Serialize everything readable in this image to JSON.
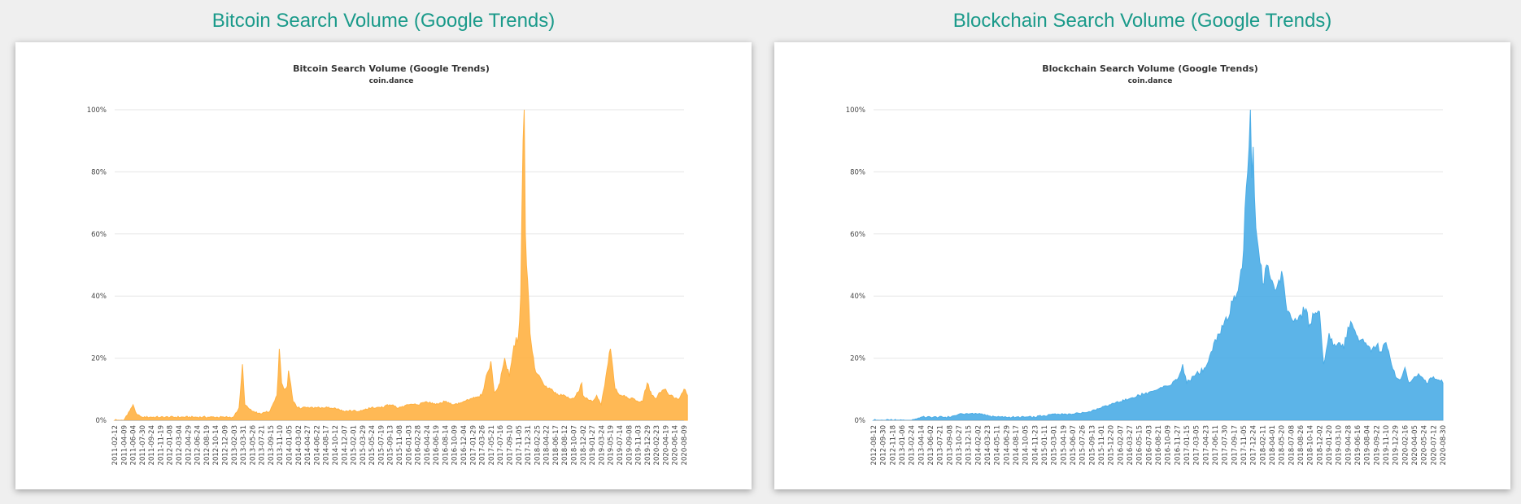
{
  "page": {
    "left_heading": "Bitcoin Search Volume (Google Trends)",
    "right_heading": "Blockchain Search Volume (Google Trends)"
  },
  "chart_data": [
    {
      "type": "area",
      "title": "Bitcoin Search Volume (Google Trends)",
      "subtitle": "coin.dance",
      "color": "#ffb142",
      "yticks": [
        "0%",
        "20%",
        "40%",
        "60%",
        "80%",
        "100%"
      ],
      "ylim": [
        0,
        100
      ],
      "grid": true,
      "x_labels": [
        "2011-02-12",
        "2011-04-09",
        "2011-06-04",
        "2011-07-30",
        "2011-09-24",
        "2011-11-19",
        "2012-01-08",
        "2012-03-04",
        "2012-04-29",
        "2012-06-24",
        "2012-08-19",
        "2012-10-14",
        "2012-12-09",
        "2013-02-03",
        "2013-03-31",
        "2013-05-26",
        "2013-07-21",
        "2013-09-15",
        "2013-11-10",
        "2014-01-05",
        "2014-03-02",
        "2014-04-27",
        "2014-06-22",
        "2014-08-17",
        "2014-10-12",
        "2014-12-07",
        "2015-02-01",
        "2015-03-29",
        "2015-05-24",
        "2015-07-19",
        "2015-09-13",
        "2015-11-08",
        "2016-01-03",
        "2016-02-28",
        "2016-04-24",
        "2016-06-19",
        "2016-08-14",
        "2016-10-09",
        "2016-12-04",
        "2017-01-29",
        "2017-03-26",
        "2017-05-21",
        "2017-07-16",
        "2017-09-10",
        "2017-11-05",
        "2017-12-31",
        "2018-02-25",
        "2018-04-22",
        "2018-06-17",
        "2018-08-12",
        "2018-10-07",
        "2018-12-02",
        "2019-01-27",
        "2019-03-24",
        "2019-05-19",
        "2019-07-14",
        "2019-09-08",
        "2019-11-03",
        "2019-12-29",
        "2020-02-23",
        "2020-04-19",
        "2020-06-14",
        "2020-08-09"
      ],
      "x": [
        "2011-02-12",
        "2011-04-09",
        "2011-05-15",
        "2011-06-04",
        "2011-06-25",
        "2011-07-30",
        "2011-09-24",
        "2011-11-19",
        "2012-06-24",
        "2012-12-09",
        "2013-02-03",
        "2013-03-10",
        "2013-03-31",
        "2013-04-14",
        "2013-05-26",
        "2013-07-21",
        "2013-09-15",
        "2013-10-27",
        "2013-11-10",
        "2013-11-24",
        "2013-12-08",
        "2013-12-29",
        "2014-01-05",
        "2014-02-02",
        "2014-03-02",
        "2014-03-30",
        "2014-04-27",
        "2014-06-22",
        "2014-08-17",
        "2014-10-12",
        "2014-12-07",
        "2015-02-01",
        "2015-03-29",
        "2015-05-24",
        "2015-07-19",
        "2015-09-13",
        "2015-11-08",
        "2016-01-03",
        "2016-02-28",
        "2016-04-24",
        "2016-06-19",
        "2016-08-14",
        "2016-10-09",
        "2016-12-04",
        "2017-01-29",
        "2017-03-26",
        "2017-05-21",
        "2017-06-11",
        "2017-07-16",
        "2017-08-13",
        "2017-09-10",
        "2017-10-08",
        "2017-11-05",
        "2017-11-19",
        "2017-12-03",
        "2017-12-10",
        "2017-12-17",
        "2017-12-24",
        "2017-12-31",
        "2018-01-14",
        "2018-01-28",
        "2018-02-11",
        "2018-02-25",
        "2018-03-25",
        "2018-04-22",
        "2018-05-20",
        "2018-06-17",
        "2018-07-15",
        "2018-08-12",
        "2018-09-09",
        "2018-10-07",
        "2018-11-04",
        "2018-11-25",
        "2018-12-02",
        "2018-12-30",
        "2019-01-27",
        "2019-02-24",
        "2019-03-24",
        "2019-04-21",
        "2019-05-19",
        "2019-06-16",
        "2019-06-30",
        "2019-07-14",
        "2019-08-11",
        "2019-09-08",
        "2019-10-06",
        "2019-11-03",
        "2019-12-01",
        "2019-12-29",
        "2020-01-26",
        "2020-02-23",
        "2020-03-15",
        "2020-04-19",
        "2020-05-17",
        "2020-06-14",
        "2020-07-12",
        "2020-08-09",
        "2020-08-30"
      ],
      "values": [
        0,
        0,
        3,
        5,
        2,
        1,
        1,
        1,
        1,
        1,
        1,
        4,
        18,
        5,
        3,
        2,
        3,
        8,
        23,
        12,
        10,
        11,
        16,
        6,
        4,
        4,
        4,
        4,
        4,
        4,
        3,
        3,
        3,
        4,
        4,
        5,
        4,
        5,
        5,
        6,
        5,
        6,
        5,
        6,
        7,
        8,
        19,
        9,
        12,
        20,
        14,
        24,
        27,
        40,
        90,
        100,
        60,
        50,
        45,
        28,
        22,
        17,
        15,
        13,
        11,
        10,
        9,
        8,
        8,
        7,
        7,
        9,
        12,
        8,
        7,
        6,
        8,
        5,
        14,
        23,
        10,
        9,
        8,
        8,
        7,
        7,
        6,
        6,
        12,
        8,
        7,
        9,
        10,
        8,
        7,
        7,
        10,
        8
      ]
    },
    {
      "type": "area",
      "title": "Blockchain Search Volume (Google Trends)",
      "subtitle": "coin.dance",
      "color": "#4aace6",
      "yticks": [
        "0%",
        "20%",
        "40%",
        "60%",
        "80%",
        "100%"
      ],
      "ylim": [
        0,
        100
      ],
      "grid": true,
      "x_labels": [
        "2012-08-12",
        "2012-09-30",
        "2012-11-18",
        "2013-01-06",
        "2013-02-24",
        "2013-04-14",
        "2013-06-02",
        "2013-07-21",
        "2013-09-08",
        "2013-10-27",
        "2013-12-15",
        "2014-02-02",
        "2014-03-23",
        "2014-05-11",
        "2014-06-29",
        "2014-08-17",
        "2014-10-05",
        "2014-11-23",
        "2015-01-11",
        "2015-03-01",
        "2015-04-19",
        "2015-06-07",
        "2015-07-26",
        "2015-09-13",
        "2015-11-01",
        "2015-12-20",
        "2016-02-07",
        "2016-03-27",
        "2016-05-15",
        "2016-07-03",
        "2016-08-21",
        "2016-10-09",
        "2016-11-27",
        "2017-01-15",
        "2017-03-05",
        "2017-04-23",
        "2017-06-11",
        "2017-07-30",
        "2017-09-17",
        "2017-11-05",
        "2017-12-24",
        "2018-02-11",
        "2018-04-01",
        "2018-05-20",
        "2018-07-08",
        "2018-08-26",
        "2018-10-14",
        "2018-12-02",
        "2019-01-20",
        "2019-03-10",
        "2019-04-28",
        "2019-06-16",
        "2019-08-04",
        "2019-09-22",
        "2019-11-10",
        "2019-12-29",
        "2020-02-16",
        "2020-04-05",
        "2020-05-24",
        "2020-07-12",
        "2020-08-30"
      ],
      "x": [
        "2012-08-12",
        "2012-11-18",
        "2013-02-24",
        "2013-04-14",
        "2013-06-02",
        "2013-09-08",
        "2013-10-27",
        "2013-12-15",
        "2014-02-02",
        "2014-05-11",
        "2014-08-17",
        "2014-11-23",
        "2015-03-01",
        "2015-06-07",
        "2015-09-13",
        "2015-11-01",
        "2015-12-20",
        "2016-02-07",
        "2016-03-27",
        "2016-05-15",
        "2016-07-03",
        "2016-08-21",
        "2016-10-09",
        "2016-11-27",
        "2016-12-25",
        "2017-01-15",
        "2017-03-05",
        "2017-04-23",
        "2017-05-21",
        "2017-06-11",
        "2017-07-30",
        "2017-08-20",
        "2017-09-17",
        "2017-10-15",
        "2017-11-05",
        "2017-11-19",
        "2017-12-03",
        "2017-12-10",
        "2017-12-17",
        "2017-12-24",
        "2017-12-31",
        "2018-01-07",
        "2018-01-21",
        "2018-02-11",
        "2018-03-04",
        "2018-04-01",
        "2018-04-22",
        "2018-05-20",
        "2018-06-10",
        "2018-07-08",
        "2018-08-05",
        "2018-08-26",
        "2018-09-16",
        "2018-10-14",
        "2018-11-04",
        "2018-12-02",
        "2018-12-23",
        "2019-01-20",
        "2019-02-10",
        "2019-03-10",
        "2019-04-07",
        "2019-04-28",
        "2019-05-19",
        "2019-06-16",
        "2019-07-07",
        "2019-08-04",
        "2019-09-01",
        "2019-09-22",
        "2019-10-20",
        "2019-11-10",
        "2019-12-08",
        "2019-12-29",
        "2020-01-19",
        "2020-02-16",
        "2020-03-08",
        "2020-04-05",
        "2020-04-26",
        "2020-05-24",
        "2020-06-14",
        "2020-07-12",
        "2020-08-02",
        "2020-08-30"
      ],
      "values": [
        0,
        0,
        0,
        1,
        1,
        1,
        2,
        2,
        2,
        1,
        1,
        1,
        2,
        2,
        3,
        4,
        5,
        6,
        7,
        8,
        9,
        10,
        11,
        13,
        18,
        12,
        15,
        17,
        22,
        26,
        32,
        33,
        40,
        45,
        55,
        75,
        88,
        100,
        78,
        88,
        72,
        62,
        55,
        44,
        50,
        45,
        42,
        48,
        38,
        33,
        32,
        34,
        35,
        31,
        34,
        35,
        18,
        28,
        24,
        25,
        23,
        30,
        31,
        27,
        26,
        24,
        23,
        24,
        22,
        25,
        18,
        14,
        13,
        17,
        12,
        14,
        15,
        13,
        12,
        14,
        13,
        12
      ]
    }
  ]
}
